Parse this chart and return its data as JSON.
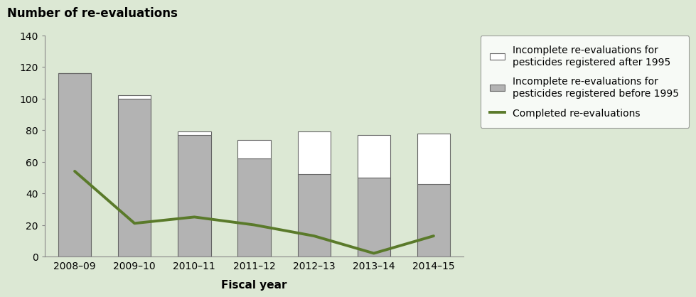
{
  "categories": [
    "2008–09",
    "2009–10",
    "2010–11",
    "2011–12",
    "2012–13",
    "2013–14",
    "2014–15"
  ],
  "before_1995": [
    116,
    100,
    77,
    62,
    52,
    50,
    46
  ],
  "after_1995": [
    0,
    2,
    2,
    12,
    27,
    27,
    32
  ],
  "completed": [
    54,
    21,
    25,
    20,
    13,
    2,
    13
  ],
  "bar_color_before": "#b3b3b3",
  "bar_color_after": "#ffffff",
  "bar_edge_color": "#666666",
  "line_color": "#5a7a2a",
  "background_color": "#dce8d4",
  "plot_bg_color": "#dce8d4",
  "title": "Number of re-evaluations",
  "xlabel": "Fiscal year",
  "ylim": [
    0,
    140
  ],
  "yticks": [
    0,
    20,
    40,
    60,
    80,
    100,
    120,
    140
  ],
  "legend_label_after": "Incomplete re-evaluations for\npesticides registered after 1995",
  "legend_label_before": "Incomplete re-evaluations for\npesticides registered before 1995",
  "legend_label_line": "Completed re-evaluations",
  "title_fontsize": 12,
  "axis_label_fontsize": 11,
  "tick_fontsize": 10,
  "legend_fontsize": 10
}
